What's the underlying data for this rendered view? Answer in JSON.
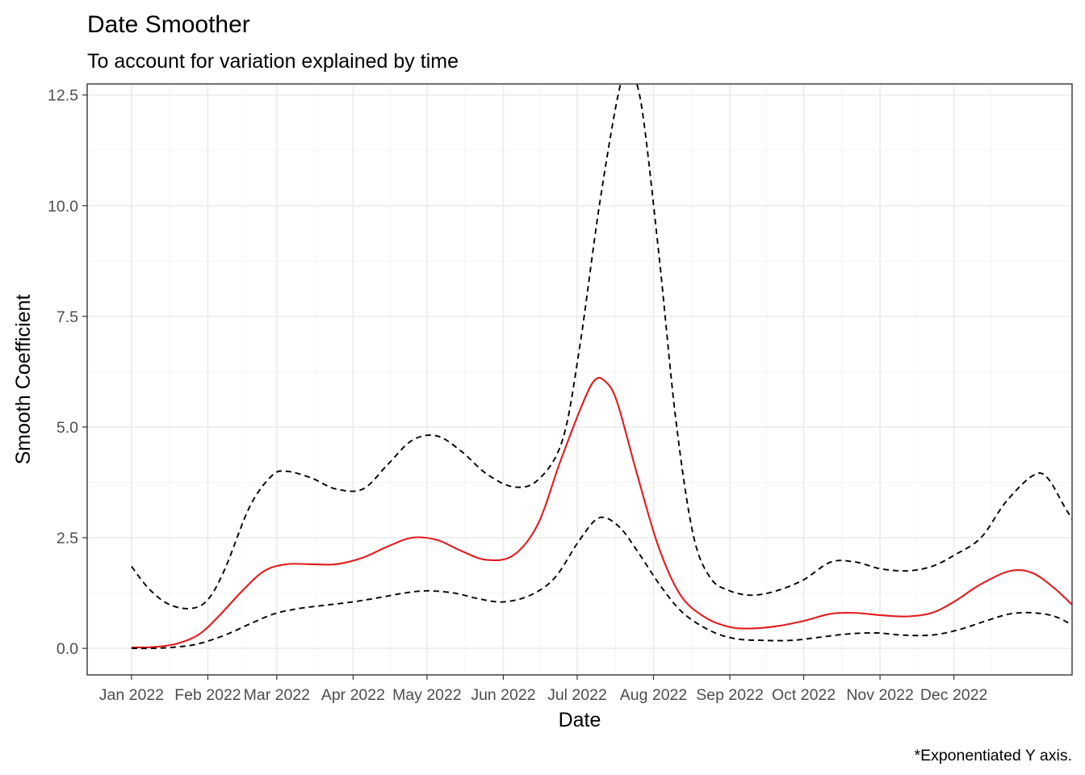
{
  "chart_data": {
    "type": "line",
    "title": "Date Smoother",
    "subtitle": "To account for variation explained by time",
    "xlabel": "Date",
    "ylabel": "Smooth Coefficient",
    "caption": "*Exponentiated Y axis.",
    "grid": true,
    "x_tick_labels": [
      "Jan 2022",
      "Feb 2022",
      "Mar 2022",
      "Apr 2022",
      "May 2022",
      "Jun 2022",
      "Jul 2022",
      "Aug 2022",
      "Sep 2022",
      "Oct 2022",
      "Nov 2022",
      "Dec 2022"
    ],
    "x_tick_dates": [
      "2022-01-01",
      "2022-02-01",
      "2022-03-01",
      "2022-04-01",
      "2022-05-01",
      "2022-06-01",
      "2022-07-01",
      "2022-08-01",
      "2022-09-01",
      "2022-10-01",
      "2022-11-01",
      "2022-12-01"
    ],
    "y_tick_labels": [
      "0.0",
      "2.5",
      "5.0",
      "7.5",
      "10.0",
      "12.5"
    ],
    "y_tick_values": [
      0,
      2.5,
      5,
      7.5,
      10,
      12.5
    ],
    "xlim": [
      "2021-12-14",
      "2023-01-18"
    ],
    "ylim": [
      -0.6,
      12.75
    ],
    "series": [
      {
        "style": "solid",
        "color": "#e41a1c",
        "points": [
          [
            "2022-01-01",
            0.02
          ],
          [
            "2022-01-10",
            0.03
          ],
          [
            "2022-01-19",
            0.1
          ],
          [
            "2022-01-28",
            0.3
          ],
          [
            "2022-02-05",
            0.7
          ],
          [
            "2022-02-15",
            1.3
          ],
          [
            "2022-02-24",
            1.75
          ],
          [
            "2022-03-05",
            1.9
          ],
          [
            "2022-03-15",
            1.9
          ],
          [
            "2022-03-25",
            1.9
          ],
          [
            "2022-04-05",
            2.05
          ],
          [
            "2022-04-15",
            2.3
          ],
          [
            "2022-04-25",
            2.5
          ],
          [
            "2022-05-05",
            2.45
          ],
          [
            "2022-05-15",
            2.2
          ],
          [
            "2022-05-25",
            2.0
          ],
          [
            "2022-06-05",
            2.1
          ],
          [
            "2022-06-15",
            2.8
          ],
          [
            "2022-06-24",
            4.2
          ],
          [
            "2022-07-03",
            5.5
          ],
          [
            "2022-07-08",
            6.05
          ],
          [
            "2022-07-12",
            6.05
          ],
          [
            "2022-07-17",
            5.6
          ],
          [
            "2022-07-25",
            4.0
          ],
          [
            "2022-08-03",
            2.3
          ],
          [
            "2022-08-12",
            1.2
          ],
          [
            "2022-08-22",
            0.7
          ],
          [
            "2022-09-01",
            0.48
          ],
          [
            "2022-09-10",
            0.45
          ],
          [
            "2022-09-20",
            0.5
          ],
          [
            "2022-10-01",
            0.62
          ],
          [
            "2022-10-12",
            0.78
          ],
          [
            "2022-10-22",
            0.8
          ],
          [
            "2022-11-01",
            0.75
          ],
          [
            "2022-11-12",
            0.72
          ],
          [
            "2022-11-22",
            0.8
          ],
          [
            "2022-12-01",
            1.05
          ],
          [
            "2022-12-12",
            1.45
          ],
          [
            "2022-12-24",
            1.75
          ],
          [
            "2023-01-02",
            1.7
          ],
          [
            "2023-01-11",
            1.35
          ],
          [
            "2023-01-20",
            0.9
          ],
          [
            "2023-01-31",
            0.55
          ]
        ]
      },
      {
        "style": "dashed",
        "color": "#000000",
        "points": [
          [
            "2022-01-01",
            1.85
          ],
          [
            "2022-01-08",
            1.35
          ],
          [
            "2022-01-16",
            1.0
          ],
          [
            "2022-01-25",
            0.9
          ],
          [
            "2022-02-01",
            1.1
          ],
          [
            "2022-02-08",
            1.8
          ],
          [
            "2022-02-18",
            3.2
          ],
          [
            "2022-02-27",
            3.9
          ],
          [
            "2022-03-05",
            4.0
          ],
          [
            "2022-03-15",
            3.85
          ],
          [
            "2022-03-25",
            3.6
          ],
          [
            "2022-04-05",
            3.6
          ],
          [
            "2022-04-15",
            4.15
          ],
          [
            "2022-04-25",
            4.7
          ],
          [
            "2022-05-05",
            4.8
          ],
          [
            "2022-05-15",
            4.45
          ],
          [
            "2022-05-25",
            3.95
          ],
          [
            "2022-06-05",
            3.65
          ],
          [
            "2022-06-15",
            3.8
          ],
          [
            "2022-06-25",
            4.7
          ],
          [
            "2022-07-02",
            6.8
          ],
          [
            "2022-07-10",
            10.0
          ],
          [
            "2022-07-18",
            12.6
          ],
          [
            "2022-07-22",
            13.0
          ],
          [
            "2022-07-27",
            12.3
          ],
          [
            "2022-08-03",
            9.0
          ],
          [
            "2022-08-10",
            5.2
          ],
          [
            "2022-08-17",
            2.6
          ],
          [
            "2022-08-24",
            1.6
          ],
          [
            "2022-09-01",
            1.3
          ],
          [
            "2022-09-10",
            1.2
          ],
          [
            "2022-09-20",
            1.3
          ],
          [
            "2022-10-01",
            1.55
          ],
          [
            "2022-10-12",
            1.95
          ],
          [
            "2022-10-22",
            1.95
          ],
          [
            "2022-11-01",
            1.8
          ],
          [
            "2022-11-12",
            1.75
          ],
          [
            "2022-11-22",
            1.85
          ],
          [
            "2022-12-01",
            2.1
          ],
          [
            "2022-12-12",
            2.5
          ],
          [
            "2022-12-22",
            3.3
          ],
          [
            "2023-01-02",
            3.9
          ],
          [
            "2023-01-08",
            3.85
          ],
          [
            "2023-01-16",
            3.1
          ],
          [
            "2023-01-24",
            2.45
          ],
          [
            "2023-01-31",
            2.3
          ]
        ]
      },
      {
        "style": "dashed",
        "color": "#000000",
        "points": [
          [
            "2022-01-01",
            0.0
          ],
          [
            "2022-01-10",
            0.0
          ],
          [
            "2022-01-19",
            0.03
          ],
          [
            "2022-01-28",
            0.1
          ],
          [
            "2022-02-08",
            0.3
          ],
          [
            "2022-02-18",
            0.55
          ],
          [
            "2022-02-28",
            0.78
          ],
          [
            "2022-03-10",
            0.9
          ],
          [
            "2022-03-20",
            0.97
          ],
          [
            "2022-04-01",
            1.05
          ],
          [
            "2022-04-12",
            1.15
          ],
          [
            "2022-04-22",
            1.25
          ],
          [
            "2022-05-01",
            1.3
          ],
          [
            "2022-05-12",
            1.25
          ],
          [
            "2022-05-22",
            1.12
          ],
          [
            "2022-06-01",
            1.05
          ],
          [
            "2022-06-12",
            1.2
          ],
          [
            "2022-06-22",
            1.6
          ],
          [
            "2022-07-02",
            2.45
          ],
          [
            "2022-07-10",
            2.95
          ],
          [
            "2022-07-18",
            2.75
          ],
          [
            "2022-07-26",
            2.15
          ],
          [
            "2022-08-04",
            1.4
          ],
          [
            "2022-08-13",
            0.8
          ],
          [
            "2022-08-24",
            0.4
          ],
          [
            "2022-09-03",
            0.22
          ],
          [
            "2022-09-14",
            0.18
          ],
          [
            "2022-09-26",
            0.18
          ],
          [
            "2022-10-06",
            0.24
          ],
          [
            "2022-10-18",
            0.32
          ],
          [
            "2022-10-30",
            0.35
          ],
          [
            "2022-11-10",
            0.3
          ],
          [
            "2022-11-22",
            0.3
          ],
          [
            "2022-12-03",
            0.42
          ],
          [
            "2022-12-14",
            0.62
          ],
          [
            "2022-12-24",
            0.78
          ],
          [
            "2023-01-03",
            0.8
          ],
          [
            "2023-01-12",
            0.7
          ],
          [
            "2023-01-22",
            0.4
          ],
          [
            "2023-01-31",
            0.18
          ]
        ]
      }
    ]
  }
}
